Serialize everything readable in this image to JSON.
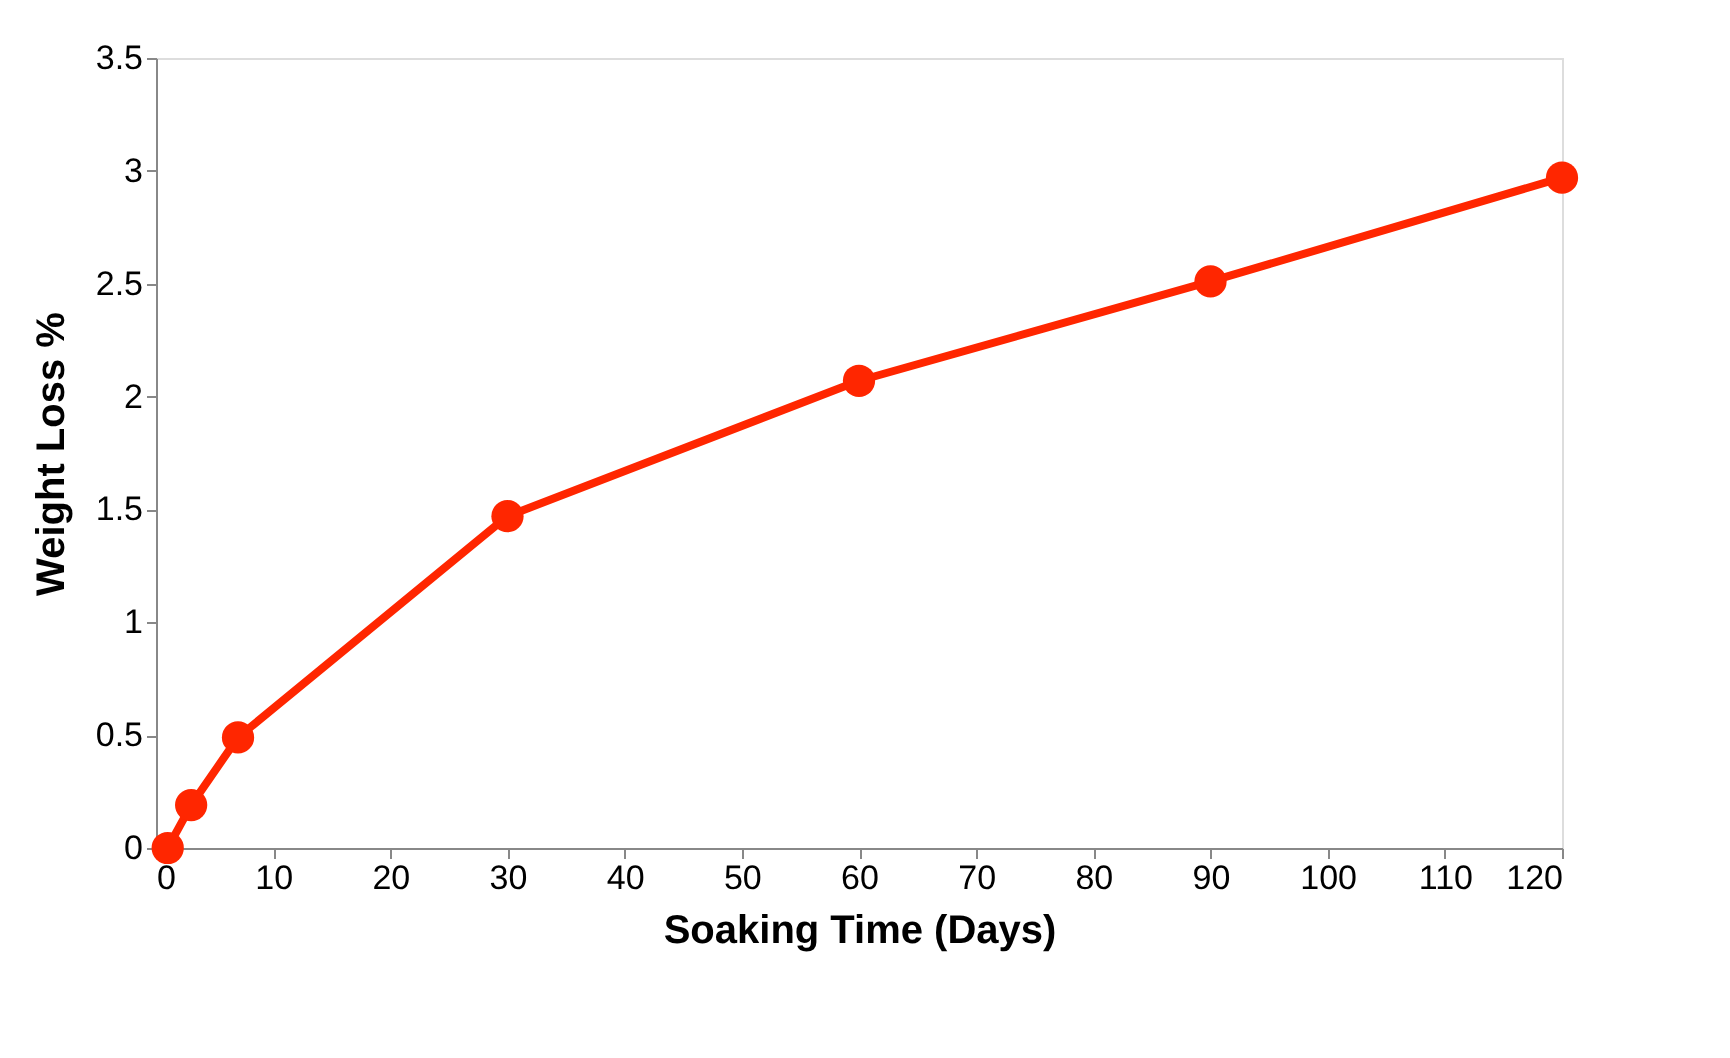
{
  "chart_data": {
    "type": "line",
    "xlabel": "Soaking Time (Days)",
    "ylabel": "Weight Loss %",
    "x": [
      1,
      3,
      7,
      30,
      60,
      90,
      120
    ],
    "series": [
      {
        "color": "#ff2600",
        "values": [
          0,
          0.19,
          0.49,
          1.47,
          2.07,
          2.51,
          2.97
        ]
      }
    ],
    "xlim": [
      0,
      120
    ],
    "xticks": [
      0,
      10,
      20,
      30,
      40,
      50,
      60,
      70,
      80,
      90,
      100,
      110,
      120
    ],
    "ylim": [
      0,
      3.5
    ],
    "yticks": [
      0,
      0.5,
      1,
      1.5,
      2,
      2.5,
      3,
      3.5
    ],
    "grid": false,
    "legend": false,
    "marker": "circle",
    "line_style": "solid"
  }
}
